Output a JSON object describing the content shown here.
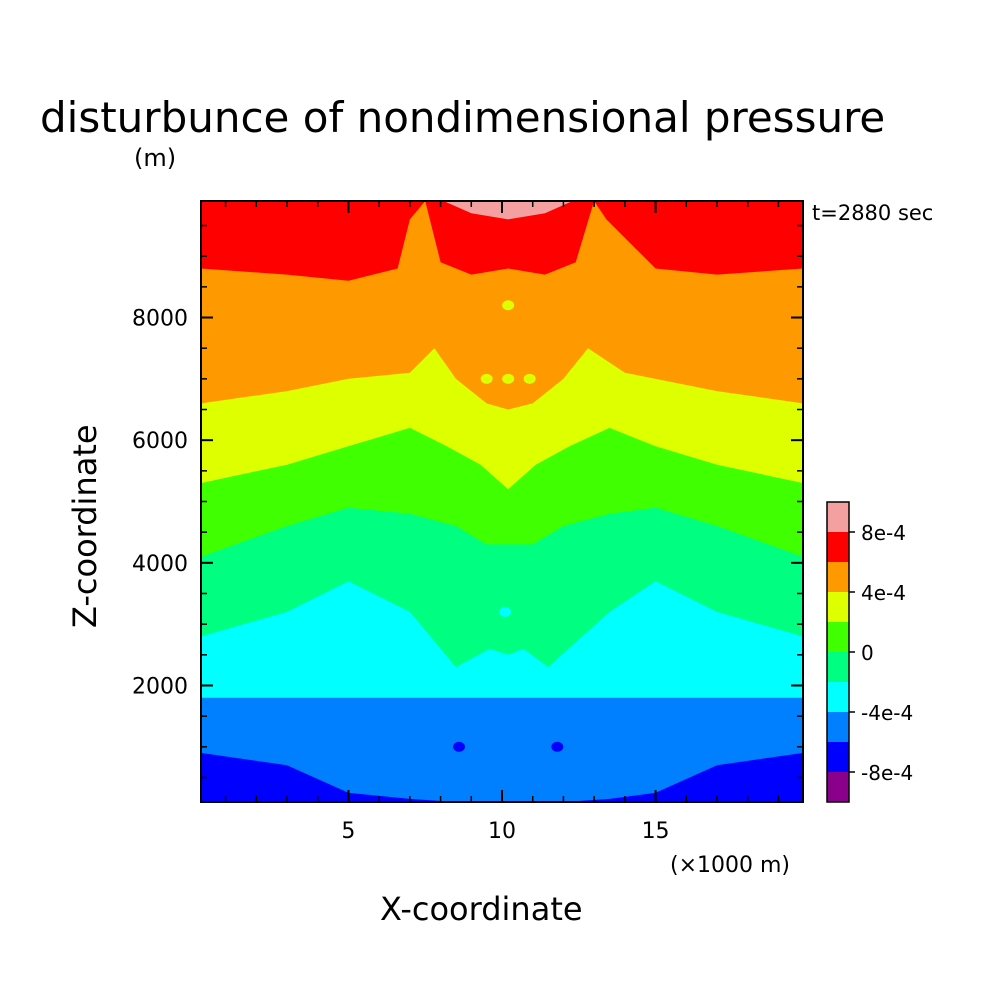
{
  "chart_data": {
    "type": "contour",
    "title": "disturbunce of nondimensional pressure",
    "units": "(m)",
    "time_label": "t=2880 sec",
    "xlabel": "X-coordinate",
    "x_unit_label": "(×1000 m)",
    "ylabel": "Z-coordinate",
    "xlim": [
      0.2,
      19.8
    ],
    "ylim": [
      100,
      9900
    ],
    "x_ticks": [
      5,
      10,
      15
    ],
    "y_ticks": [
      2000,
      4000,
      6000,
      8000
    ],
    "x_tick_labels": [
      "5",
      "10",
      "15"
    ],
    "y_tick_labels": [
      "2000",
      "4000",
      "6000",
      "8000"
    ],
    "grid": false,
    "levels": [
      {
        "min": -0.0012,
        "max": -0.0008,
        "color": "#8b008b"
      },
      {
        "min": -0.0008,
        "max": -0.0006,
        "color": "#0000ff"
      },
      {
        "min": -0.0006,
        "max": -0.0004,
        "color": "#0080ff"
      },
      {
        "min": -0.0004,
        "max": -0.0002,
        "color": "#00ffff"
      },
      {
        "min": -0.0002,
        "max": 0.0,
        "color": "#00ff80"
      },
      {
        "min": 0.0,
        "max": 0.0002,
        "color": "#40ff00"
      },
      {
        "min": 0.0002,
        "max": 0.0004,
        "color": "#ddff00"
      },
      {
        "min": 0.0004,
        "max": 0.0006,
        "color": "#ff9900"
      },
      {
        "min": 0.0006,
        "max": 0.0008,
        "color": "#ff0000"
      },
      {
        "min": 0.0008,
        "max": 0.0012,
        "color": "#f5a0a0"
      }
    ],
    "colorbar_labels": [
      "8e-4",
      "4e-4",
      "0",
      "-4e-4",
      "-8e-4"
    ],
    "contour_boundaries_m": [
      {
        "name": "b1",
        "x": [
          0.2,
          3,
          5,
          7,
          8.5,
          10.2,
          12,
          13.5,
          15,
          17,
          19.8
        ],
        "z": [
          900,
          700,
          250,
          150,
          100,
          100,
          100,
          150,
          250,
          700,
          900
        ]
      },
      {
        "name": "b2",
        "x": [
          0.2,
          5,
          8,
          9.5,
          10.2,
          11,
          12.5,
          15,
          19.8
        ],
        "z": [
          1800,
          1800,
          1800,
          1800,
          1800,
          1800,
          1800,
          1800,
          1800
        ]
      },
      {
        "name": "b3",
        "x": [
          0.2,
          3,
          5,
          7,
          8.5,
          9.6,
          10.2,
          10.7,
          11.5,
          13.5,
          15,
          17,
          19.8
        ],
        "z": [
          2800,
          3200,
          3700,
          3200,
          2300,
          2600,
          2500,
          2600,
          2300,
          3200,
          3700,
          3200,
          2800
        ]
      },
      {
        "name": "b4",
        "x": [
          0.2,
          3,
          5,
          7,
          8.5,
          9.5,
          10.2,
          11,
          12,
          13.5,
          15,
          17,
          19.8
        ],
        "z": [
          4100,
          4600,
          4900,
          4800,
          4600,
          4300,
          4300,
          4300,
          4600,
          4800,
          4900,
          4600,
          4100
        ]
      },
      {
        "name": "b5",
        "x": [
          0.2,
          3,
          5,
          7,
          8.2,
          9.3,
          10.2,
          11.1,
          12.2,
          13.5,
          15,
          17,
          19.8
        ],
        "z": [
          5300,
          5600,
          5900,
          6200,
          5900,
          5600,
          5200,
          5600,
          5900,
          6200,
          5900,
          5600,
          5300
        ]
      },
      {
        "name": "b6",
        "x": [
          0.2,
          3,
          5,
          7,
          7.8,
          8.5,
          9.5,
          10.2,
          11,
          12,
          12.8,
          14,
          17,
          19.8
        ],
        "z": [
          6600,
          6800,
          7000,
          7100,
          7500,
          7000,
          6600,
          6500,
          6600,
          7000,
          7500,
          7100,
          6800,
          6600
        ]
      },
      {
        "name": "b7",
        "x": [
          0.2,
          3,
          5,
          6.6,
          7,
          7.5,
          8,
          9,
          10.2,
          11.4,
          12.4,
          13,
          13.4,
          15,
          17,
          19.8
        ],
        "z": [
          8800,
          8700,
          8600,
          8800,
          9600,
          9900,
          8900,
          8700,
          8800,
          8700,
          8900,
          9900,
          9600,
          8800,
          8700,
          8800
        ]
      },
      {
        "name": "b8",
        "x": [
          8.1,
          9,
          10.2,
          11.4,
          12.3
        ],
        "z": [
          9900,
          9700,
          9600,
          9700,
          9900
        ]
      }
    ],
    "small_features": [
      {
        "x": 8.6,
        "z": 1000,
        "level": "-8e-4"
      },
      {
        "x": 11.8,
        "z": 1000,
        "level": "-8e-4"
      },
      {
        "x": 10.1,
        "z": 3200,
        "level": "-4e-4"
      },
      {
        "x": 10.2,
        "z": 8200,
        "level": "4e-4"
      },
      {
        "x": 9.5,
        "z": 7000,
        "level": "4e-4"
      },
      {
        "x": 10.2,
        "z": 7000,
        "level": "4e-4"
      },
      {
        "x": 10.9,
        "z": 7000,
        "level": "4e-4"
      }
    ]
  }
}
